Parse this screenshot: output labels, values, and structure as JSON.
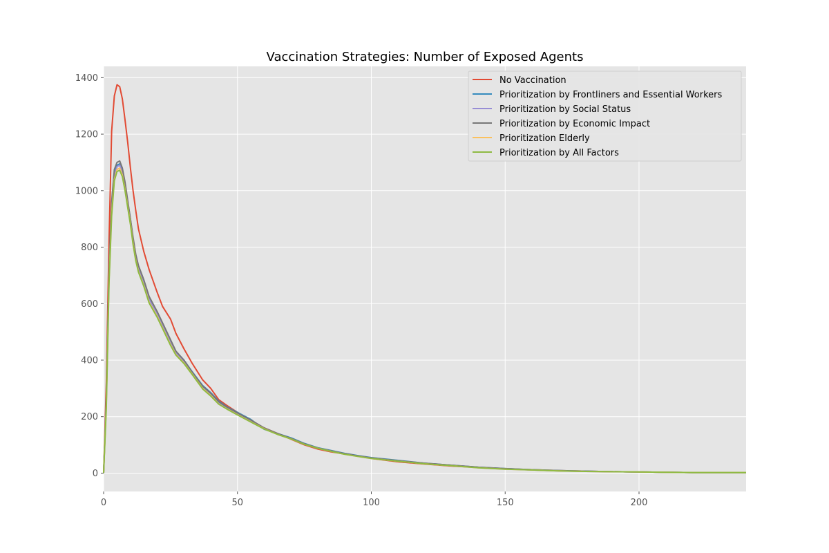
{
  "chart_data": {
    "type": "line",
    "title": "Vaccination Strategies: Number of Exposed Agents",
    "xlabel": "",
    "ylabel": "",
    "xlim": [
      0,
      240
    ],
    "ylim": [
      -65,
      1440
    ],
    "xticks": [
      0,
      50,
      100,
      150,
      200
    ],
    "yticks": [
      0,
      200,
      400,
      600,
      800,
      1000,
      1200,
      1400
    ],
    "grid": true,
    "legend_position": "top-right",
    "series": [
      {
        "name": "No Vaccination",
        "color": "#E24A33",
        "points": [
          [
            0,
            0
          ],
          [
            1,
            320
          ],
          [
            2,
            820
          ],
          [
            3,
            1210
          ],
          [
            4,
            1335
          ],
          [
            5,
            1375
          ],
          [
            6,
            1368
          ],
          [
            7,
            1325
          ],
          [
            8,
            1250
          ],
          [
            9,
            1170
          ],
          [
            10,
            1080
          ],
          [
            11,
            1000
          ],
          [
            12,
            930
          ],
          [
            13,
            865
          ],
          [
            15,
            785
          ],
          [
            17,
            720
          ],
          [
            20,
            640
          ],
          [
            22,
            590
          ],
          [
            25,
            545
          ],
          [
            27,
            495
          ],
          [
            30,
            440
          ],
          [
            33,
            390
          ],
          [
            35,
            360
          ],
          [
            37,
            330
          ],
          [
            40,
            300
          ],
          [
            43,
            260
          ],
          [
            46,
            240
          ],
          [
            50,
            215
          ],
          [
            55,
            185
          ],
          [
            60,
            160
          ],
          [
            65,
            140
          ],
          [
            70,
            120
          ],
          [
            75,
            100
          ],
          [
            80,
            85
          ],
          [
            85,
            75
          ],
          [
            90,
            68
          ],
          [
            95,
            60
          ],
          [
            100,
            52
          ],
          [
            110,
            40
          ],
          [
            120,
            32
          ],
          [
            130,
            25
          ],
          [
            140,
            20
          ],
          [
            150,
            15
          ],
          [
            160,
            12
          ],
          [
            170,
            9
          ],
          [
            180,
            7
          ],
          [
            190,
            5
          ],
          [
            200,
            4
          ],
          [
            210,
            3
          ],
          [
            220,
            2
          ],
          [
            230,
            2
          ],
          [
            240,
            2
          ]
        ]
      },
      {
        "name": "Prioritization by Frontliners and Essential Workers",
        "color": "#348ABD",
        "points": [
          [
            0,
            0
          ],
          [
            1,
            260
          ],
          [
            2,
            700
          ],
          [
            3,
            940
          ],
          [
            4,
            1060
          ],
          [
            5,
            1090
          ],
          [
            6,
            1095
          ],
          [
            7,
            1070
          ],
          [
            8,
            1020
          ],
          [
            9,
            960
          ],
          [
            10,
            900
          ],
          [
            11,
            830
          ],
          [
            12,
            770
          ],
          [
            13,
            730
          ],
          [
            15,
            680
          ],
          [
            17,
            620
          ],
          [
            20,
            570
          ],
          [
            22,
            530
          ],
          [
            25,
            470
          ],
          [
            27,
            430
          ],
          [
            30,
            400
          ],
          [
            33,
            360
          ],
          [
            35,
            335
          ],
          [
            37,
            310
          ],
          [
            40,
            285
          ],
          [
            43,
            255
          ],
          [
            46,
            235
          ],
          [
            50,
            215
          ],
          [
            55,
            190
          ],
          [
            60,
            155
          ],
          [
            65,
            140
          ],
          [
            70,
            125
          ],
          [
            75,
            105
          ],
          [
            80,
            90
          ],
          [
            85,
            80
          ],
          [
            90,
            70
          ],
          [
            95,
            62
          ],
          [
            100,
            55
          ],
          [
            110,
            45
          ],
          [
            120,
            35
          ],
          [
            130,
            28
          ],
          [
            140,
            21
          ],
          [
            150,
            16
          ],
          [
            160,
            12
          ],
          [
            170,
            9
          ],
          [
            180,
            7
          ],
          [
            190,
            5
          ],
          [
            200,
            4
          ],
          [
            210,
            3
          ],
          [
            220,
            2
          ],
          [
            230,
            2
          ],
          [
            240,
            2
          ]
        ]
      },
      {
        "name": "Prioritization by Social Status",
        "color": "#988ED5",
        "points": [
          [
            0,
            0
          ],
          [
            1,
            250
          ],
          [
            2,
            690
          ],
          [
            3,
            930
          ],
          [
            4,
            1050
          ],
          [
            5,
            1085
          ],
          [
            6,
            1090
          ],
          [
            7,
            1065
          ],
          [
            8,
            1015
          ],
          [
            9,
            955
          ],
          [
            10,
            895
          ],
          [
            11,
            825
          ],
          [
            12,
            765
          ],
          [
            13,
            725
          ],
          [
            15,
            675
          ],
          [
            17,
            615
          ],
          [
            20,
            565
          ],
          [
            22,
            525
          ],
          [
            25,
            465
          ],
          [
            27,
            425
          ],
          [
            30,
            395
          ],
          [
            33,
            355
          ],
          [
            35,
            330
          ],
          [
            37,
            305
          ],
          [
            40,
            280
          ],
          [
            43,
            250
          ],
          [
            46,
            232
          ],
          [
            50,
            212
          ],
          [
            55,
            185
          ],
          [
            60,
            158
          ],
          [
            65,
            138
          ],
          [
            70,
            122
          ],
          [
            75,
            103
          ],
          [
            80,
            88
          ],
          [
            85,
            78
          ],
          [
            90,
            68
          ],
          [
            95,
            60
          ],
          [
            100,
            53
          ],
          [
            110,
            43
          ],
          [
            120,
            34
          ],
          [
            130,
            27
          ],
          [
            140,
            20
          ],
          [
            150,
            15
          ],
          [
            160,
            11
          ],
          [
            170,
            8
          ],
          [
            180,
            6
          ],
          [
            190,
            5
          ],
          [
            200,
            4
          ],
          [
            210,
            3
          ],
          [
            220,
            2
          ],
          [
            230,
            2
          ],
          [
            240,
            2
          ]
        ]
      },
      {
        "name": "Prioritization by Economic Impact",
        "color": "#777777",
        "points": [
          [
            0,
            0
          ],
          [
            1,
            270
          ],
          [
            2,
            720
          ],
          [
            3,
            960
          ],
          [
            4,
            1075
          ],
          [
            5,
            1100
          ],
          [
            6,
            1105
          ],
          [
            7,
            1080
          ],
          [
            8,
            1030
          ],
          [
            9,
            965
          ],
          [
            10,
            900
          ],
          [
            11,
            835
          ],
          [
            12,
            775
          ],
          [
            13,
            735
          ],
          [
            15,
            685
          ],
          [
            17,
            625
          ],
          [
            20,
            572
          ],
          [
            22,
            532
          ],
          [
            25,
            472
          ],
          [
            27,
            432
          ],
          [
            30,
            400
          ],
          [
            33,
            358
          ],
          [
            35,
            333
          ],
          [
            37,
            308
          ],
          [
            40,
            283
          ],
          [
            43,
            253
          ],
          [
            46,
            234
          ],
          [
            50,
            213
          ],
          [
            55,
            188
          ],
          [
            60,
            160
          ],
          [
            65,
            140
          ],
          [
            70,
            123
          ],
          [
            75,
            104
          ],
          [
            80,
            89
          ],
          [
            85,
            79
          ],
          [
            90,
            69
          ],
          [
            95,
            61
          ],
          [
            100,
            54
          ],
          [
            110,
            44
          ],
          [
            120,
            35
          ],
          [
            130,
            28
          ],
          [
            140,
            21
          ],
          [
            150,
            16
          ],
          [
            160,
            12
          ],
          [
            170,
            9
          ],
          [
            180,
            7
          ],
          [
            190,
            5
          ],
          [
            200,
            4
          ],
          [
            210,
            3
          ],
          [
            220,
            2
          ],
          [
            230,
            2
          ],
          [
            240,
            2
          ]
        ]
      },
      {
        "name": "Prioritization Elderly",
        "color": "#FBC15E",
        "points": [
          [
            0,
            0
          ],
          [
            1,
            240
          ],
          [
            2,
            680
          ],
          [
            3,
            920
          ],
          [
            4,
            1040
          ],
          [
            5,
            1075
          ],
          [
            6,
            1080
          ],
          [
            7,
            1055
          ],
          [
            8,
            1005
          ],
          [
            9,
            945
          ],
          [
            10,
            885
          ],
          [
            11,
            815
          ],
          [
            12,
            755
          ],
          [
            13,
            715
          ],
          [
            15,
            665
          ],
          [
            17,
            605
          ],
          [
            20,
            555
          ],
          [
            22,
            515
          ],
          [
            25,
            455
          ],
          [
            27,
            420
          ],
          [
            30,
            390
          ],
          [
            33,
            352
          ],
          [
            35,
            326
          ],
          [
            37,
            300
          ],
          [
            40,
            275
          ],
          [
            43,
            245
          ],
          [
            46,
            228
          ],
          [
            50,
            207
          ],
          [
            55,
            182
          ],
          [
            60,
            157
          ],
          [
            65,
            137
          ],
          [
            70,
            121
          ],
          [
            75,
            102
          ],
          [
            80,
            88
          ],
          [
            85,
            77
          ],
          [
            90,
            67
          ],
          [
            95,
            59
          ],
          [
            100,
            52
          ],
          [
            110,
            42
          ],
          [
            120,
            33
          ],
          [
            130,
            26
          ],
          [
            140,
            19
          ],
          [
            150,
            14
          ],
          [
            160,
            11
          ],
          [
            170,
            8
          ],
          [
            180,
            6
          ],
          [
            190,
            5
          ],
          [
            200,
            4
          ],
          [
            210,
            3
          ],
          [
            220,
            2
          ],
          [
            230,
            2
          ],
          [
            240,
            2
          ]
        ]
      },
      {
        "name": "Prioritization by All Factors",
        "color": "#8EBA42",
        "points": [
          [
            0,
            0
          ],
          [
            1,
            230
          ],
          [
            2,
            670
          ],
          [
            3,
            910
          ],
          [
            4,
            1035
          ],
          [
            5,
            1068
          ],
          [
            6,
            1072
          ],
          [
            7,
            1050
          ],
          [
            8,
            1000
          ],
          [
            9,
            940
          ],
          [
            10,
            880
          ],
          [
            11,
            810
          ],
          [
            12,
            752
          ],
          [
            13,
            712
          ],
          [
            15,
            662
          ],
          [
            17,
            602
          ],
          [
            20,
            552
          ],
          [
            22,
            512
          ],
          [
            25,
            452
          ],
          [
            27,
            418
          ],
          [
            30,
            388
          ],
          [
            33,
            350
          ],
          [
            35,
            324
          ],
          [
            37,
            298
          ],
          [
            40,
            273
          ],
          [
            43,
            244
          ],
          [
            46,
            227
          ],
          [
            50,
            206
          ],
          [
            55,
            181
          ],
          [
            60,
            156
          ],
          [
            65,
            137
          ],
          [
            70,
            121
          ],
          [
            75,
            102
          ],
          [
            80,
            88
          ],
          [
            85,
            77
          ],
          [
            90,
            67
          ],
          [
            95,
            59
          ],
          [
            100,
            52
          ],
          [
            110,
            42
          ],
          [
            120,
            33
          ],
          [
            130,
            26
          ],
          [
            140,
            19
          ],
          [
            150,
            14
          ],
          [
            160,
            11
          ],
          [
            170,
            8
          ],
          [
            180,
            6
          ],
          [
            190,
            5
          ],
          [
            200,
            4
          ],
          [
            210,
            3
          ],
          [
            220,
            2
          ],
          [
            230,
            2
          ],
          [
            240,
            2
          ]
        ]
      }
    ]
  }
}
